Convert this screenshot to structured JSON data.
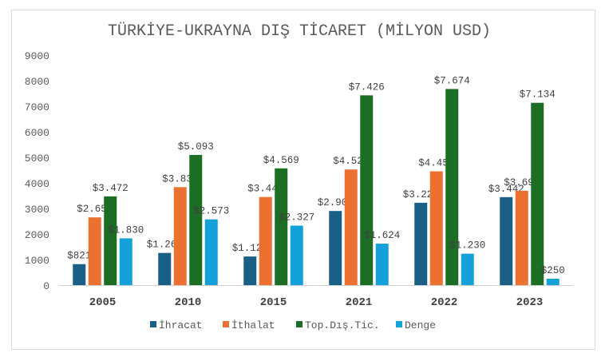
{
  "chart_data": {
    "type": "bar",
    "title": "TÜRKİYE-UKRAYNA DIŞ TİCARET (MİLYON USD)",
    "categories": [
      "2005",
      "2010",
      "2015",
      "2021",
      "2022",
      "2023"
    ],
    "ylim": [
      0,
      9000
    ],
    "yticks": [
      "0",
      "1000",
      "2000",
      "3000",
      "4000",
      "5000",
      "6000",
      "7000",
      "8000",
      "9000"
    ],
    "grid": false,
    "legend_position": "bottom",
    "series": [
      {
        "name": "İhracat",
        "color": "#1a5f85",
        "values": [
          821,
          1260,
          1121,
          2901,
          3222,
          3442
        ],
        "labels": [
          "$821",
          "$1.260",
          "$1.121",
          "$2.901",
          "$3.222",
          "$3.442"
        ]
      },
      {
        "name": "İthalat",
        "color": "#ec7131",
        "values": [
          2651,
          3833,
          3448,
          4525,
          4452,
          3692
        ],
        "labels": [
          "$2.651",
          "$3.833",
          "$3.448",
          "$4.525",
          "$4.452",
          "$3.692"
        ]
      },
      {
        "name": "Top.Dış.Tic.",
        "color": "#1c6e25",
        "values": [
          3472,
          5093,
          4569,
          7426,
          7674,
          7134
        ],
        "labels": [
          "$3.472",
          "$5.093",
          "$4.569",
          "$7.426",
          "$7.674",
          "$7.134"
        ]
      },
      {
        "name": "Denge",
        "color": "#14a0d8",
        "values": [
          1830,
          2573,
          2327,
          1624,
          1230,
          250
        ],
        "labels": [
          "$1.830",
          "$2.573",
          "$2.327",
          "$1.624",
          "$1.230",
          "$250"
        ]
      }
    ]
  }
}
